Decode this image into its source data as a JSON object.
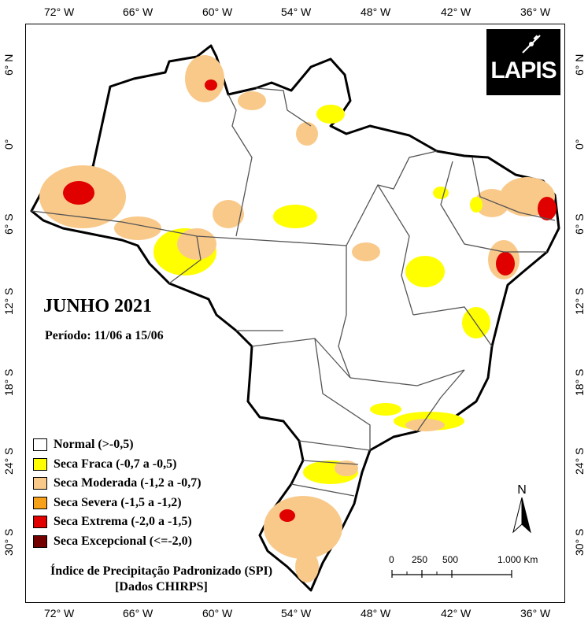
{
  "title": "JUNHO 2021",
  "period": "Período: 11/06 a 15/06",
  "caption_line1": "Índice de Precipitação Padronizado (SPI)",
  "caption_line2": "[Dados CHIRPS]",
  "logo_text": "LAPIS",
  "north_label": "N",
  "longitude_ticks": [
    "72° W",
    "66° W",
    "60° W",
    "54° W",
    "48° W",
    "42° W",
    "36° W"
  ],
  "latitude_ticks": [
    "6° N",
    "0°",
    "6° S",
    "12° S",
    "18° S",
    "24° S",
    "30° S"
  ],
  "scale": {
    "labels": [
      "0",
      "250",
      "500",
      "1.000 Km"
    ]
  },
  "legend": [
    {
      "label": "Normal (>-0,5)",
      "color": "#ffffff"
    },
    {
      "label": "Seca Fraca (-0,7 a -0,5)",
      "color": "#ffff00"
    },
    {
      "label": "Seca Moderada (-1,2 a -0,7)",
      "color": "#f9c98a"
    },
    {
      "label": "Seca Severa (-1,5 a -1,2)",
      "color": "#f7a11a"
    },
    {
      "label": "Seca Extrema (-2,0 a -1,5)",
      "color": "#e00000"
    },
    {
      "label": "Seca Excepcional (<=-2,0)",
      "color": "#730000"
    }
  ]
}
